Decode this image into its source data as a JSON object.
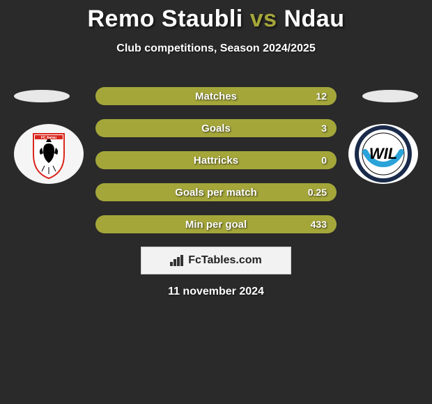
{
  "background_color": "#2a2a2a",
  "title": {
    "player1": "Remo Staubli",
    "vs": "vs",
    "player2": "Ndau",
    "player_color": "#ffffff",
    "vs_color": "#a4a63a",
    "fontsize": 34
  },
  "subtitle": {
    "text": "Club competitions, Season 2024/2025",
    "color": "#ffffff",
    "fontsize": 16
  },
  "bars": {
    "track_color": "#3a3a3a",
    "fill_color": "#a4a63a",
    "label_color": "#ffffff",
    "value_color": "#ffffff",
    "height": 26,
    "gap": 20,
    "label_fontsize": 15,
    "value_fontsize": 14,
    "rows": [
      {
        "label": "Matches",
        "value": "12",
        "fill_pct": 100
      },
      {
        "label": "Goals",
        "value": "3",
        "fill_pct": 100
      },
      {
        "label": "Hattricks",
        "value": "0",
        "fill_pct": 100
      },
      {
        "label": "Goals per match",
        "value": "0.25",
        "fill_pct": 100
      },
      {
        "label": "Min per goal",
        "value": "433",
        "fill_pct": 100
      }
    ]
  },
  "ovals": {
    "color": "#e8e8e8",
    "width": 80,
    "height": 18
  },
  "badges": {
    "left": {
      "team": "FC Aarau",
      "bg_color": "#f5f5f5",
      "primary": "#000000",
      "accent": "#d9261c"
    },
    "right": {
      "team": "FC Wil",
      "bg_color": "#ffffff",
      "ring": "#1a2a4a",
      "accent": "#2aa3d9"
    }
  },
  "logo": {
    "text": "FcTables.com",
    "icon": "bars-icon",
    "bg": "#f2f2f2",
    "border": "#c9c9c9",
    "text_color": "#222222",
    "fontsize": 16
  },
  "date": {
    "text": "11 november 2024",
    "color": "#ffffff",
    "fontsize": 16
  }
}
